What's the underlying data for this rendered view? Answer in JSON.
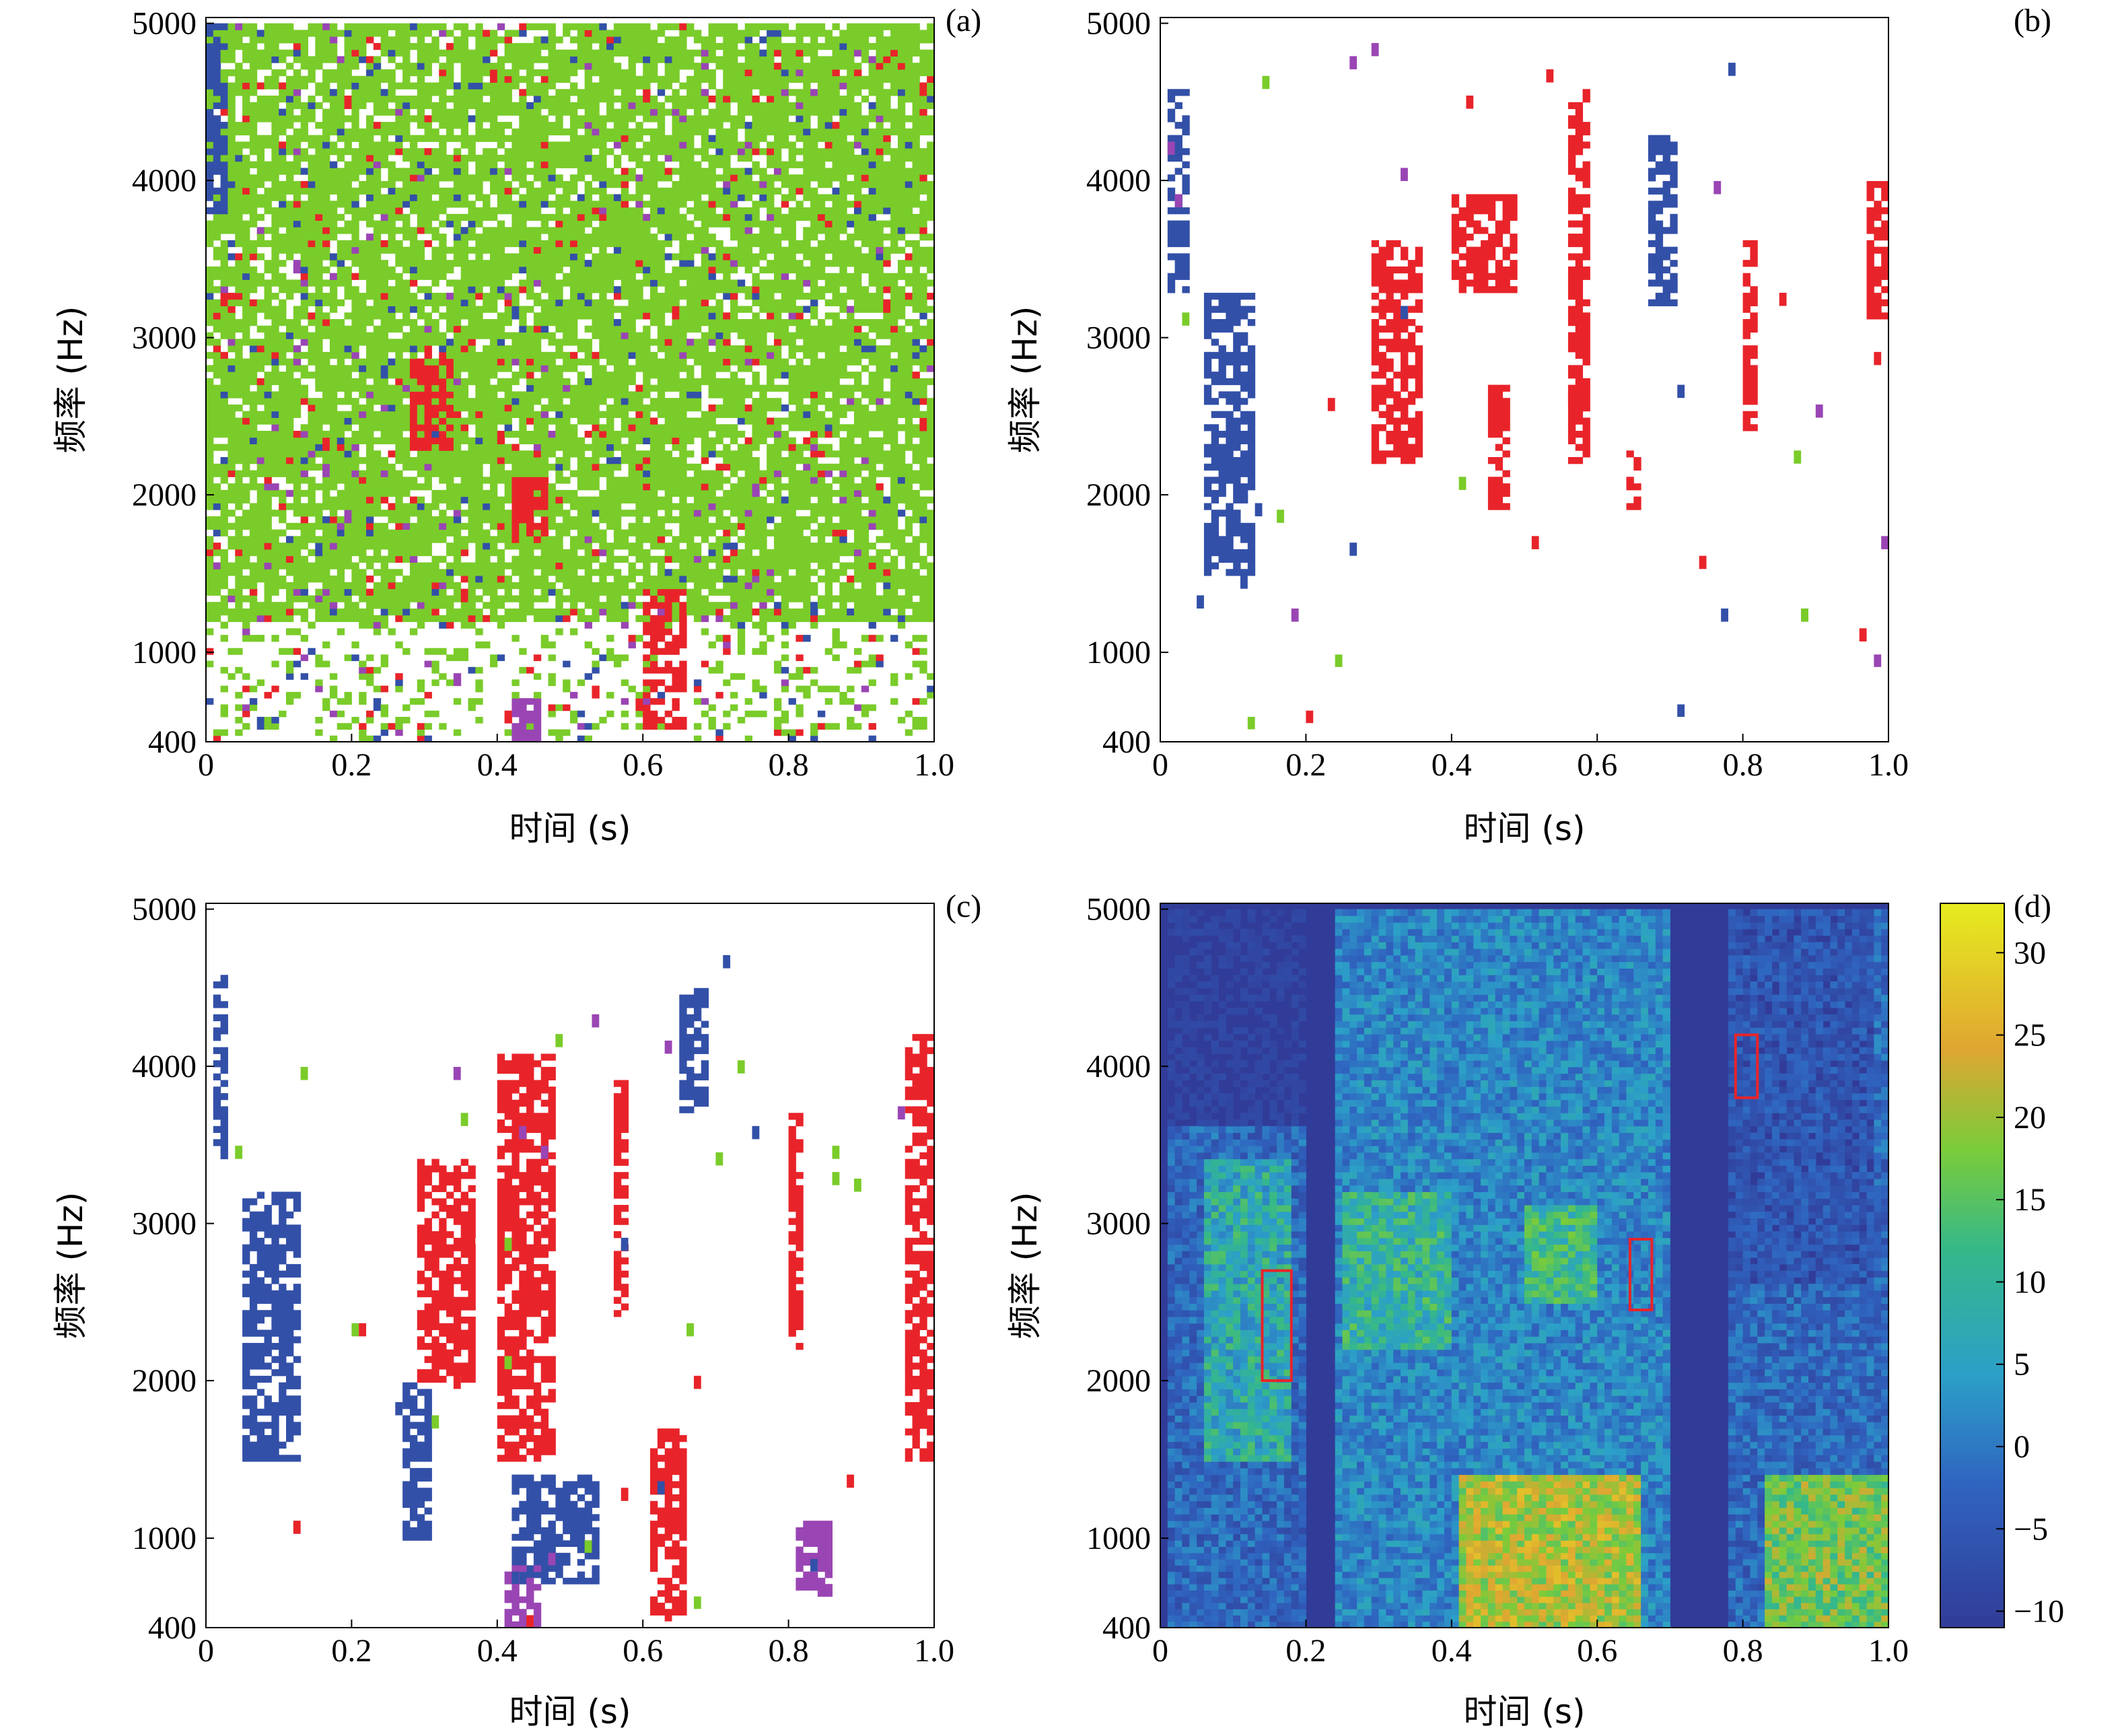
{
  "figure": {
    "panel_colors": {
      "blue": "#3350a8",
      "green": "#7acc2a",
      "red": "#e8242a",
      "purple": "#9a45b4"
    }
  },
  "chart_data": [
    {
      "type": "heatmap",
      "panel": "(a)",
      "xlabel": "时间 (s)",
      "ylabel": "频率 (Hz)",
      "xlim": [
        0,
        1.0
      ],
      "ylim": [
        400,
        5000
      ],
      "xticks": [
        "0",
        "0.2",
        "0.4",
        "0.6",
        "0.8",
        "1.0"
      ],
      "yticks": [
        "400",
        "1000",
        "2000",
        "3000",
        "4000",
        "5000"
      ],
      "categories": [
        "blue",
        "green",
        "red",
        "purple"
      ],
      "description_of_regions": [
        {
          "color": "green",
          "t": [
            0.0,
            1.0
          ],
          "f": [
            1200,
            5000
          ],
          "density": 0.55
        },
        {
          "color": "red",
          "t": [
            0.28,
            0.34
          ],
          "f": [
            2300,
            2900
          ],
          "density": 0.8
        },
        {
          "color": "red",
          "t": [
            0.42,
            0.47
          ],
          "f": [
            1700,
            2100
          ],
          "density": 0.8
        },
        {
          "color": "red",
          "t": [
            0.6,
            0.66
          ],
          "f": [
            500,
            1400
          ],
          "density": 0.6
        },
        {
          "color": "purple",
          "t": [
            0.42,
            0.46
          ],
          "f": [
            400,
            700
          ],
          "density": 0.8
        },
        {
          "color": "blue",
          "t": [
            0.0,
            0.03
          ],
          "f": [
            3800,
            5000
          ],
          "density": 0.7
        }
      ]
    },
    {
      "type": "heatmap",
      "panel": "(b)",
      "xlabel": "时间 (s)",
      "ylabel": "频率 (Hz)",
      "xlim": [
        0,
        1.0
      ],
      "ylim": [
        400,
        5000
      ],
      "xticks": [
        "0",
        "0.2",
        "0.4",
        "0.6",
        "0.8",
        "1.0"
      ],
      "yticks": [
        "400",
        "1000",
        "2000",
        "3000",
        "4000",
        "5000"
      ],
      "regions": [
        {
          "color": "blue",
          "t": [
            0.015,
            0.04
          ],
          "f": [
            3300,
            4600
          ]
        },
        {
          "color": "blue",
          "t": [
            0.06,
            0.13
          ],
          "f": [
            1500,
            3300
          ]
        },
        {
          "color": "blue",
          "t": [
            0.67,
            0.71
          ],
          "f": [
            3200,
            4300
          ]
        },
        {
          "color": "red",
          "t": [
            0.29,
            0.36
          ],
          "f": [
            2200,
            3600
          ]
        },
        {
          "color": "red",
          "t": [
            0.4,
            0.49
          ],
          "f": [
            3300,
            3900
          ]
        },
        {
          "color": "red",
          "t": [
            0.45,
            0.48
          ],
          "f": [
            1900,
            2700
          ]
        },
        {
          "color": "red",
          "t": [
            0.56,
            0.59
          ],
          "f": [
            2200,
            4600
          ]
        },
        {
          "color": "red",
          "t": [
            0.8,
            0.82
          ],
          "f": [
            2400,
            3600
          ]
        },
        {
          "color": "red",
          "t": [
            0.97,
            1.0
          ],
          "f": [
            3100,
            4000
          ]
        },
        {
          "color": "red",
          "t": [
            0.64,
            0.66
          ],
          "f": [
            1900,
            2300
          ]
        }
      ]
    },
    {
      "type": "heatmap",
      "panel": "(c)",
      "xlabel": "时间 (s)",
      "ylabel": "频率 (Hz)",
      "xlim": [
        0,
        1.0
      ],
      "ylim": [
        400,
        5000
      ],
      "xticks": [
        "0",
        "0.2",
        "0.4",
        "0.6",
        "0.8",
        "1.0"
      ],
      "yticks": [
        "400",
        "1000",
        "2000",
        "3000",
        "4000",
        "5000"
      ],
      "regions": [
        {
          "color": "blue",
          "t": [
            0.01,
            0.03
          ],
          "f": [
            3400,
            4600
          ]
        },
        {
          "color": "blue",
          "t": [
            0.05,
            0.13
          ],
          "f": [
            1500,
            3200
          ]
        },
        {
          "color": "blue",
          "t": [
            0.27,
            0.31
          ],
          "f": [
            1000,
            2000
          ]
        },
        {
          "color": "blue",
          "t": [
            0.42,
            0.54
          ],
          "f": [
            700,
            1400
          ]
        },
        {
          "color": "blue",
          "t": [
            0.65,
            0.69
          ],
          "f": [
            3700,
            4500
          ]
        },
        {
          "color": "red",
          "t": [
            0.29,
            0.37
          ],
          "f": [
            2000,
            3400
          ]
        },
        {
          "color": "red",
          "t": [
            0.4,
            0.48
          ],
          "f": [
            1500,
            4100
          ]
        },
        {
          "color": "red",
          "t": [
            0.56,
            0.58
          ],
          "f": [
            2400,
            3900
          ]
        },
        {
          "color": "red",
          "t": [
            0.61,
            0.66
          ],
          "f": [
            500,
            1700
          ]
        },
        {
          "color": "red",
          "t": [
            0.8,
            0.82
          ],
          "f": [
            2200,
            3700
          ]
        },
        {
          "color": "red",
          "t": [
            0.96,
            1.0
          ],
          "f": [
            1500,
            4200
          ]
        },
        {
          "color": "purple",
          "t": [
            0.41,
            0.46
          ],
          "f": [
            400,
            800
          ]
        },
        {
          "color": "purple",
          "t": [
            0.81,
            0.86
          ],
          "f": [
            600,
            1100
          ]
        }
      ]
    },
    {
      "type": "heatmap",
      "panel": "(d)",
      "xlabel": "时间 (s)",
      "ylabel": "频率 (Hz)",
      "xlim": [
        0,
        1.0
      ],
      "ylim": [
        400,
        5000
      ],
      "xticks": [
        "0",
        "0.2",
        "0.4",
        "0.6",
        "0.8",
        "1.0"
      ],
      "yticks": [
        "400",
        "1000",
        "2000",
        "3000",
        "4000",
        "5000"
      ],
      "colorbar": {
        "ticks": [
          "30",
          "25",
          "20",
          "15",
          "10",
          "5",
          "0",
          "−5",
          "−10"
        ],
        "range": [
          -11,
          33
        ],
        "colormap": "viridis-like"
      },
      "highlight_boxes": [
        {
          "t": [
            0.14,
            0.18
          ],
          "f": [
            2000,
            2700
          ]
        },
        {
          "t": [
            0.645,
            0.675
          ],
          "f": [
            2450,
            2900
          ]
        },
        {
          "t": [
            0.79,
            0.82
          ],
          "f": [
            3800,
            4200
          ]
        }
      ],
      "energy_regions": [
        {
          "t": [
            0.06,
            0.18
          ],
          "f": [
            1500,
            3400
          ],
          "level": 8
        },
        {
          "t": [
            0.41,
            0.66
          ],
          "f": [
            400,
            1400
          ],
          "level": 22
        },
        {
          "t": [
            0.83,
            1.0
          ],
          "f": [
            400,
            1400
          ],
          "level": 18
        },
        {
          "t": [
            0.25,
            0.4
          ],
          "f": [
            2200,
            3200
          ],
          "level": 10
        },
        {
          "t": [
            0.5,
            0.6
          ],
          "f": [
            2500,
            3100
          ],
          "level": 12
        }
      ]
    }
  ]
}
